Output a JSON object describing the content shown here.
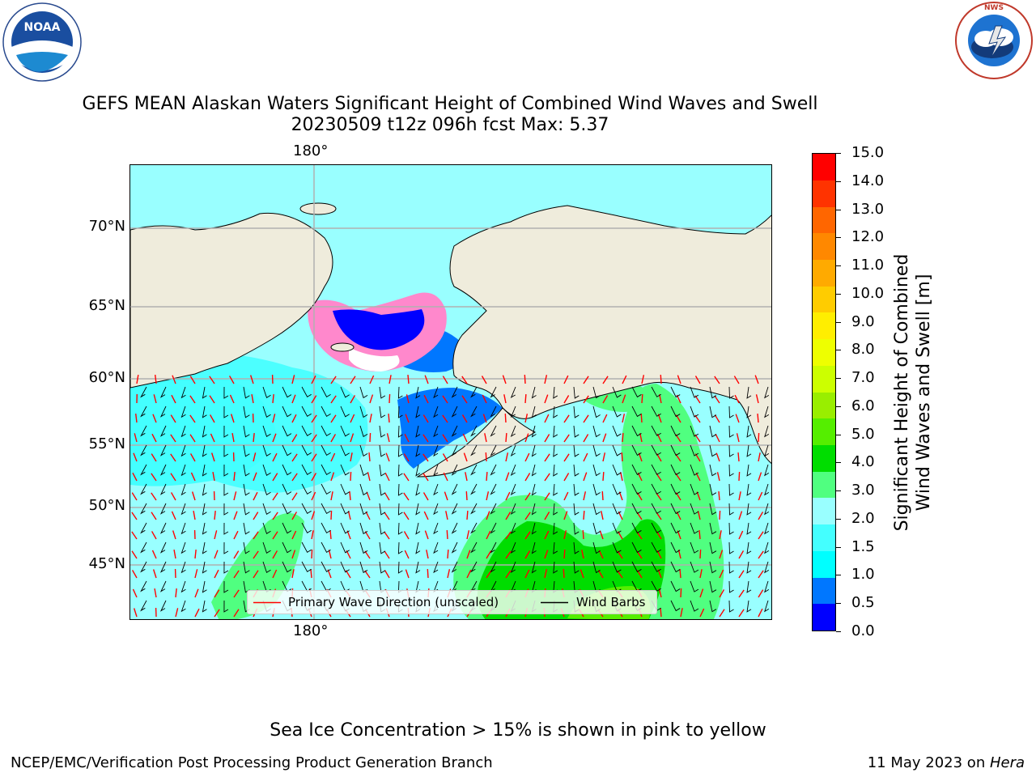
{
  "title": {
    "line1": "GEFS MEAN Alaskan Waters Significant Height of Combined Wind Waves and Swell",
    "line2": "20230509 t12z 096h fcst   Max: 5.37"
  },
  "logos": {
    "noara": {
      "text": "NOAA",
      "ring_text": "NATIONAL OCEANIC AND ATMOSPHERIC ADMINISTRATION · U.S. DEPARTMENT OF COMMERCE"
    },
    "nws": {
      "ring_text": "NATIONAL WEATHER SERVICE"
    }
  },
  "map": {
    "lat_labels": [
      "70°N",
      "65°N",
      "60°N",
      "55°N",
      "50°N",
      "45°N"
    ],
    "lon_label_top": "180°",
    "lon_label_bottom": "180°",
    "colors": {
      "ocean_base": "#99ffff",
      "land": "#efecdc",
      "grid": "#b0b0b0"
    }
  },
  "legend": {
    "wave_label": "Primary Wave Direction (unscaled)",
    "barb_label": "Wind Barbs",
    "wave_color": "#ff0000",
    "barb_color": "#000000"
  },
  "colorbar": {
    "title_line1": "Significant Height of Combined",
    "title_line2": "Wind Waves and Swell [m]",
    "ticks": [
      "15.0",
      "14.0",
      "13.0",
      "12.0",
      "11.0",
      "10.0",
      "9.0",
      "8.0",
      "7.0",
      "6.0",
      "5.0",
      "4.0",
      "3.0",
      "2.0",
      "1.5",
      "1.0",
      "0.5",
      "0.0"
    ],
    "bands": [
      "#0000ff",
      "#0077ff",
      "#00ffff",
      "#44ffff",
      "#99ffff",
      "#50ff80",
      "#00dd00",
      "#55ee00",
      "#99ee00",
      "#ccff00",
      "#eeff00",
      "#ffee00",
      "#ffcc00",
      "#ffaa00",
      "#ff8800",
      "#ff6600",
      "#ff3300",
      "#ff0000"
    ]
  },
  "footer": {
    "note": "Sea Ice Concentration > 15% is shown in pink to yellow",
    "left": "NCEP/EMC/Verification Post Processing Product Generation Branch",
    "right_prefix": "11 May 2023 on ",
    "right_host": "Hera"
  }
}
